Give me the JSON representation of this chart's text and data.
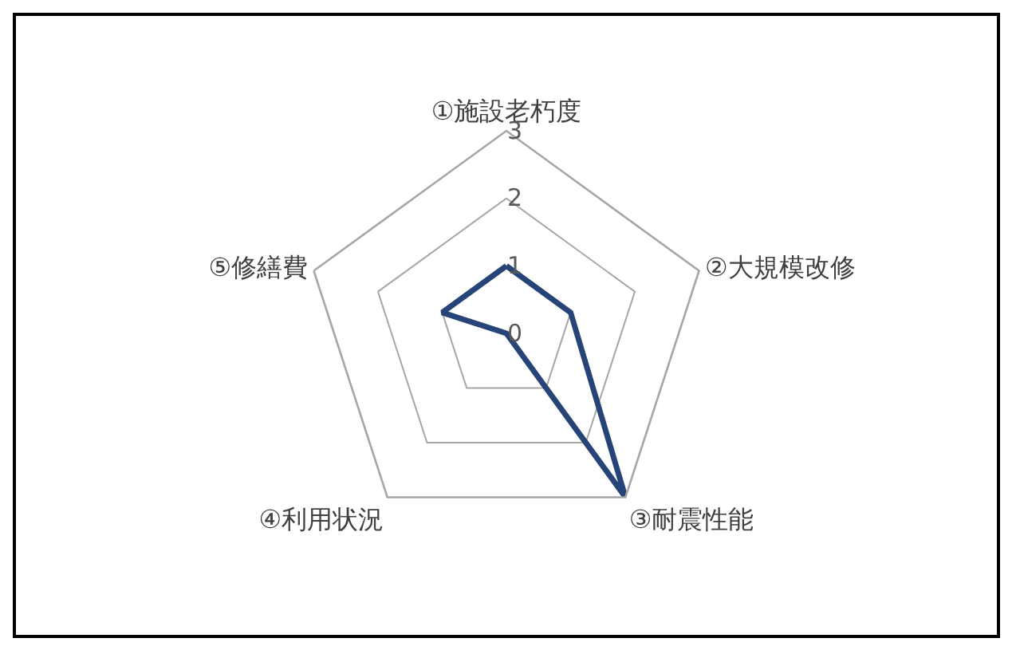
{
  "chart_data": {
    "type": "radar",
    "categories": [
      "①施設老朽度",
      "②大規模改修",
      "③耐震性能",
      "④利用状況",
      "⑤修繕費"
    ],
    "series": [
      {
        "color": "#264478",
        "values": [
          1,
          1,
          3,
          0,
          1
        ]
      }
    ],
    "ylim": [
      0,
      3
    ],
    "yticks": [
      0,
      1,
      2,
      3
    ],
    "grid": "y",
    "marker": "none",
    "line_style": "solid"
  }
}
